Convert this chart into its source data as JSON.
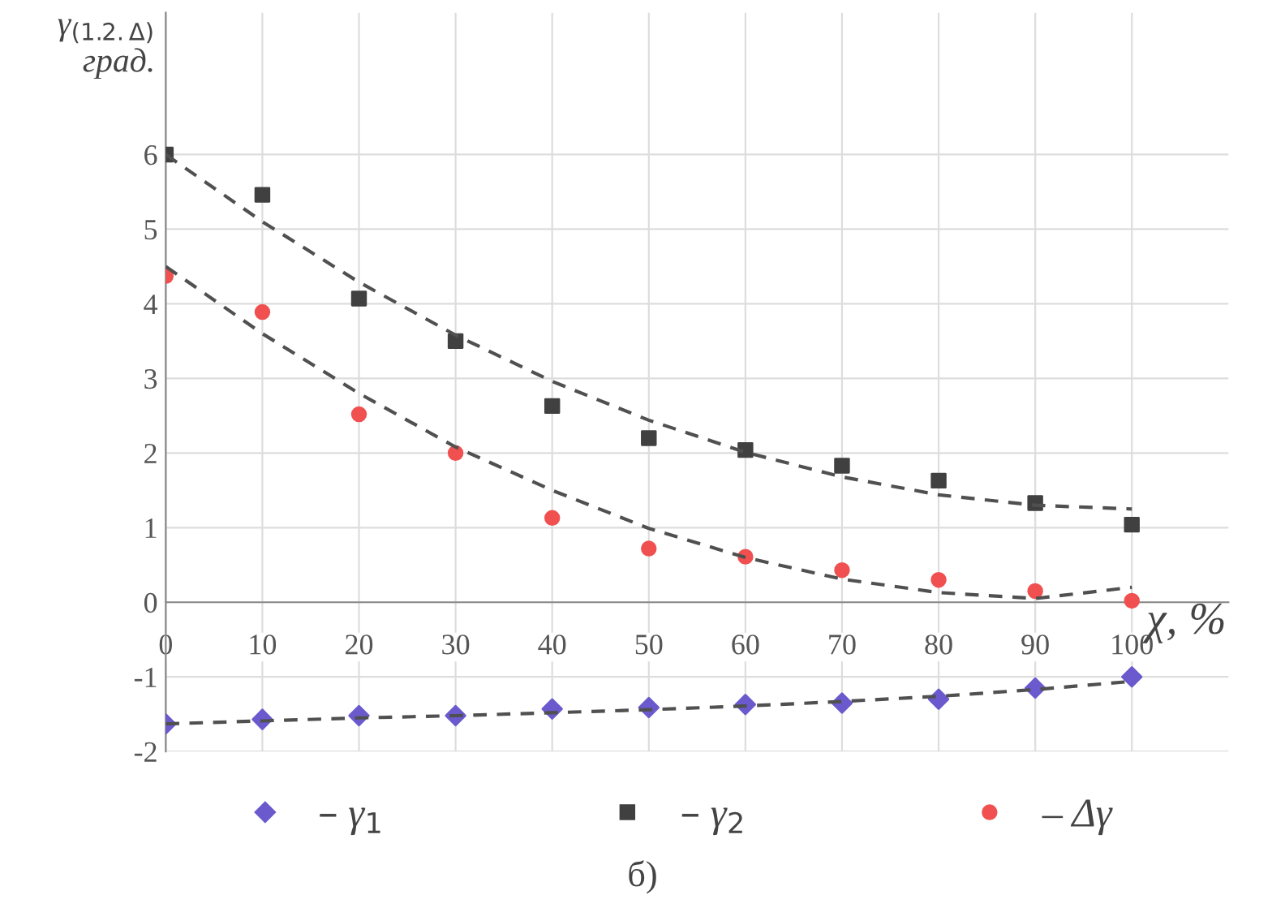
{
  "chart_data": {
    "type": "scatter",
    "ylabel": "γ$_{(1.2.Δ)}$\nград.",
    "xlabel": "χ, %",
    "annotations": [
      "б)"
    ],
    "x": [
      0,
      10,
      20,
      30,
      40,
      50,
      60,
      70,
      80,
      90,
      100
    ],
    "series": [
      {
        "name": "– γ$_{1}$",
        "color": "#6a5acd",
        "marker": "diamond",
        "values": [
          -1.63,
          -1.57,
          -1.52,
          -1.52,
          -1.43,
          -1.41,
          -1.37,
          -1.35,
          -1.3,
          -1.15,
          -1.0
        ]
      },
      {
        "name": "– γ$_{2}$",
        "color": "#404040",
        "marker": "square",
        "values": [
          6.0,
          5.46,
          4.07,
          3.5,
          2.63,
          2.2,
          2.04,
          1.83,
          1.63,
          1.33,
          1.04
        ]
      },
      {
        "name": "– Δγ",
        "color": "#f05050",
        "marker": "circle",
        "values": [
          4.37,
          3.89,
          2.52,
          2.0,
          1.13,
          0.72,
          0.61,
          0.43,
          0.3,
          0.15,
          0.02
        ]
      },
      {
        "type": "line",
        "color": "#505050",
        "line_style": "dashed",
        "x": [
          0,
          10,
          20,
          30,
          40,
          50,
          60,
          70,
          80,
          90,
          100
        ],
        "values": [
          -1.63,
          -1.59,
          -1.55,
          -1.52,
          -1.48,
          -1.44,
          -1.39,
          -1.33,
          -1.26,
          -1.17,
          -1.06
        ]
      },
      {
        "type": "line",
        "color": "#505050",
        "line_style": "dashed",
        "x": [
          0,
          10,
          20,
          30,
          40,
          50,
          60,
          70,
          80,
          90,
          100
        ],
        "values": [
          6.0,
          5.1,
          4.29,
          3.58,
          2.96,
          2.44,
          2.01,
          1.68,
          1.44,
          1.3,
          1.25
        ]
      },
      {
        "type": "line",
        "color": "#505050",
        "line_style": "dashed",
        "x": [
          0,
          10,
          20,
          30,
          40,
          50,
          60,
          70,
          80,
          90,
          100
        ],
        "values": [
          4.5,
          3.6,
          2.8,
          2.08,
          1.5,
          0.99,
          0.6,
          0.31,
          0.13,
          0.05,
          0.2
        ]
      }
    ],
    "xlim": [
      0,
      110
    ],
    "ylim": [
      -2,
      7.9
    ],
    "xticks": [
      0,
      10,
      20,
      30,
      40,
      50,
      60,
      70,
      80,
      90,
      100
    ],
    "yticks": [
      -2,
      -1,
      0,
      1,
      2,
      3,
      4,
      5,
      6
    ],
    "grid": true,
    "legend": "bottom"
  }
}
